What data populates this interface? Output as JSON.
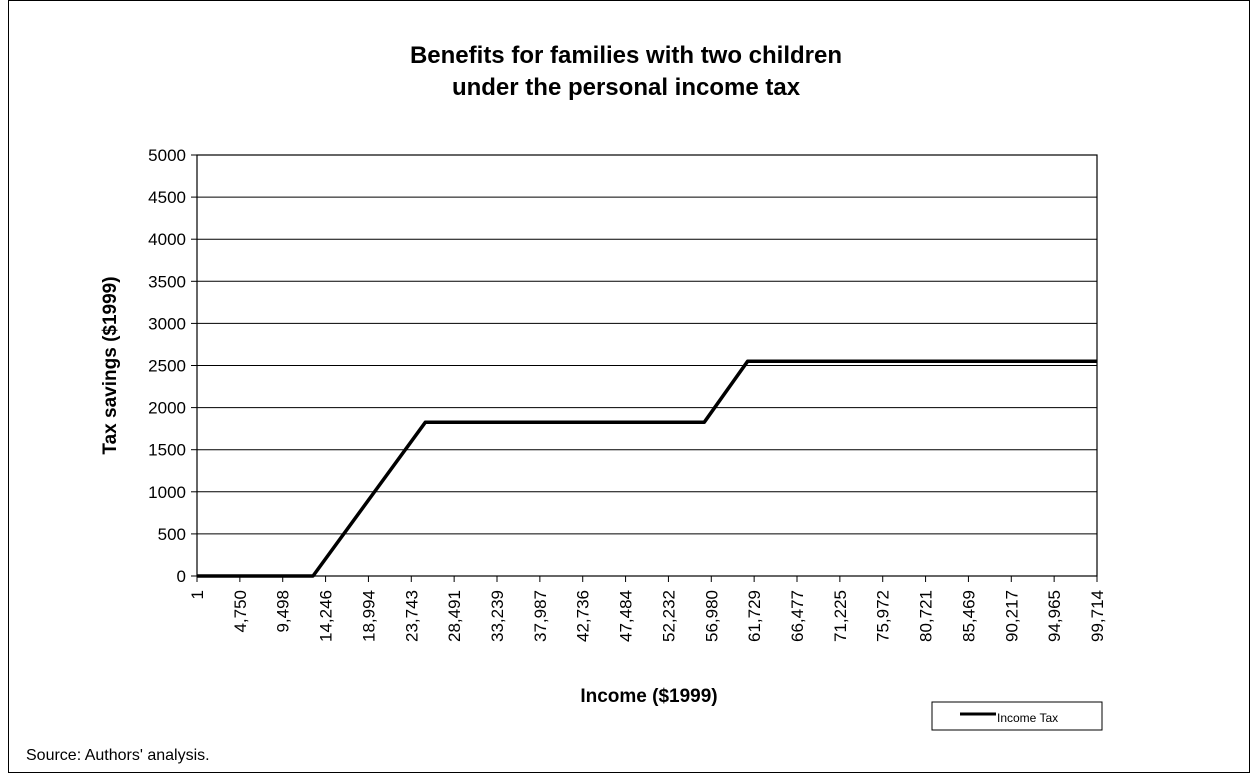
{
  "chart_data": {
    "type": "line",
    "title_line1": "Benefits for families with two children",
    "title_line2": "under the personal income tax",
    "xlabel": "Income ($1999)",
    "ylabel": "Tax savings ($1999)",
    "ylim": [
      0,
      5000
    ],
    "yticks": [
      "0",
      "500",
      "1000",
      "1500",
      "2000",
      "2500",
      "3000",
      "3500",
      "4000",
      "4500",
      "5000"
    ],
    "xlim": [
      1,
      99714
    ],
    "xticks": [
      "1",
      "4,750",
      "9,498",
      "14,246",
      "18,994",
      "23,743",
      "28,491",
      "33,239",
      "37,987",
      "42,736",
      "47,484",
      "52,232",
      "56,980",
      "61,729",
      "66,477",
      "71,225",
      "75,972",
      "80,721",
      "85,469",
      "90,217",
      "94,965",
      "99,714"
    ],
    "grid": "horizontal",
    "legend_position": "bottom-right",
    "series": [
      {
        "name": "Income Tax",
        "color": "#000000",
        "x": [
          1,
          12850,
          25300,
          56200,
          61000,
          99714
        ],
        "y": [
          0,
          0,
          1825,
          1825,
          2550,
          2550
        ]
      }
    ]
  },
  "source_note": "Source: Authors' analysis."
}
